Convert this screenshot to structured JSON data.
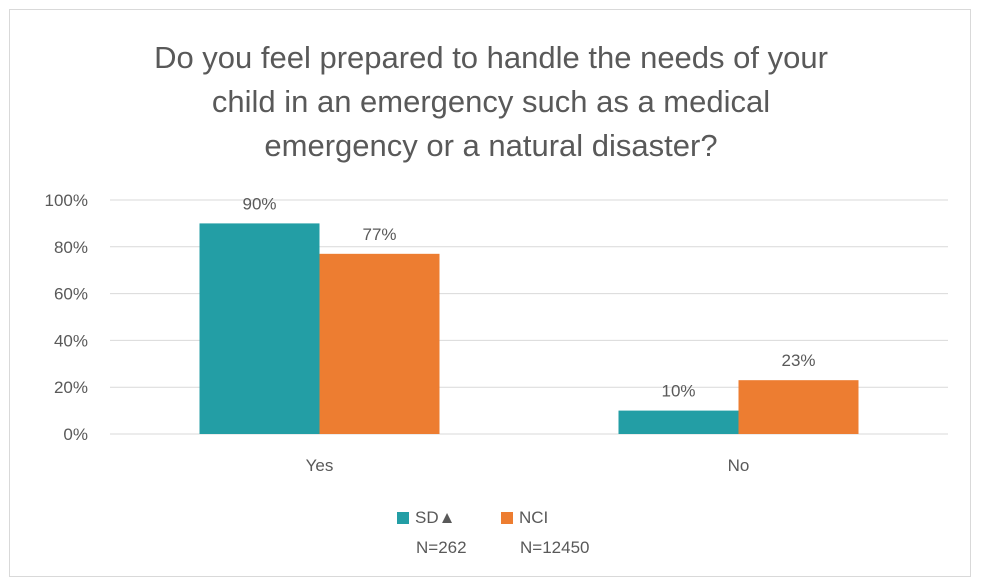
{
  "title_lines": [
    "Do you feel prepared to handle the needs of your",
    "child in an emergency such as a medical",
    "emergency or a natural disaster?"
  ],
  "colors": {
    "SD": "#239ea5",
    "NCI": "#ed7d31",
    "grid": "#d9d9d9",
    "text": "#595959"
  },
  "legend": {
    "sd_label": "SD▲",
    "sd_n": "N=262",
    "nci_label": "NCI",
    "nci_n": "N=12450"
  },
  "chart_data": {
    "type": "bar",
    "title": "Do you feel prepared to handle the needs of your child in an emergency such as a medical emergency or a natural disaster?",
    "categories": [
      "Yes",
      "No"
    ],
    "series": [
      {
        "name": "SD▲",
        "values": [
          90,
          10
        ],
        "labels": [
          "90%",
          "10%"
        ]
      },
      {
        "name": "NCI",
        "values": [
          77,
          23
        ],
        "labels": [
          "77%",
          "23%"
        ]
      }
    ],
    "ylim": [
      0,
      100
    ],
    "yticks": [
      "0%",
      "20%",
      "40%",
      "60%",
      "80%",
      "100%"
    ],
    "xlabel": "",
    "ylabel": "",
    "grid": true,
    "legend_position": "bottom"
  }
}
